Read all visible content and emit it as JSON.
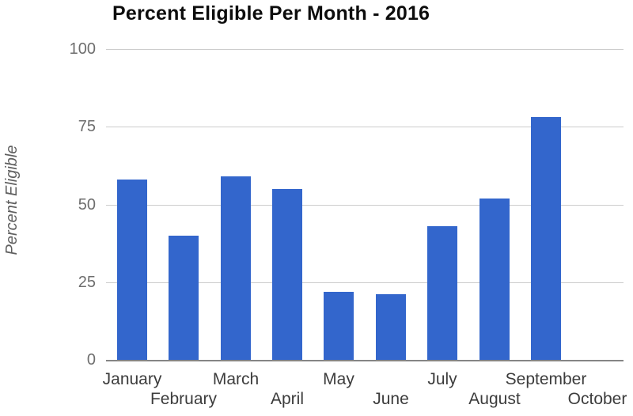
{
  "chart_data": {
    "type": "bar",
    "title": "Percent Eligible Per Month - 2016",
    "categories": [
      "January",
      "February",
      "March",
      "April",
      "May",
      "June",
      "July",
      "August",
      "September",
      "October"
    ],
    "values": [
      58,
      40,
      59,
      55,
      22,
      21,
      43,
      52,
      78,
      0
    ],
    "xlabel": "",
    "ylabel": "Percent Eligible",
    "ylim": [
      0,
      100
    ],
    "yticks": [
      0,
      25,
      50,
      75,
      100
    ],
    "grid": true,
    "legend": "none",
    "colors": {
      "bar": "#3366cc",
      "gridline": "#cccccc",
      "axis_line": "#858585",
      "title_text": "#0d0d0d",
      "y_tick_text": "#6e6e6e",
      "x_tick_text": "#3c3c3c",
      "y_axis_title_text": "#5f5f5f",
      "background": "#ffffff"
    }
  }
}
